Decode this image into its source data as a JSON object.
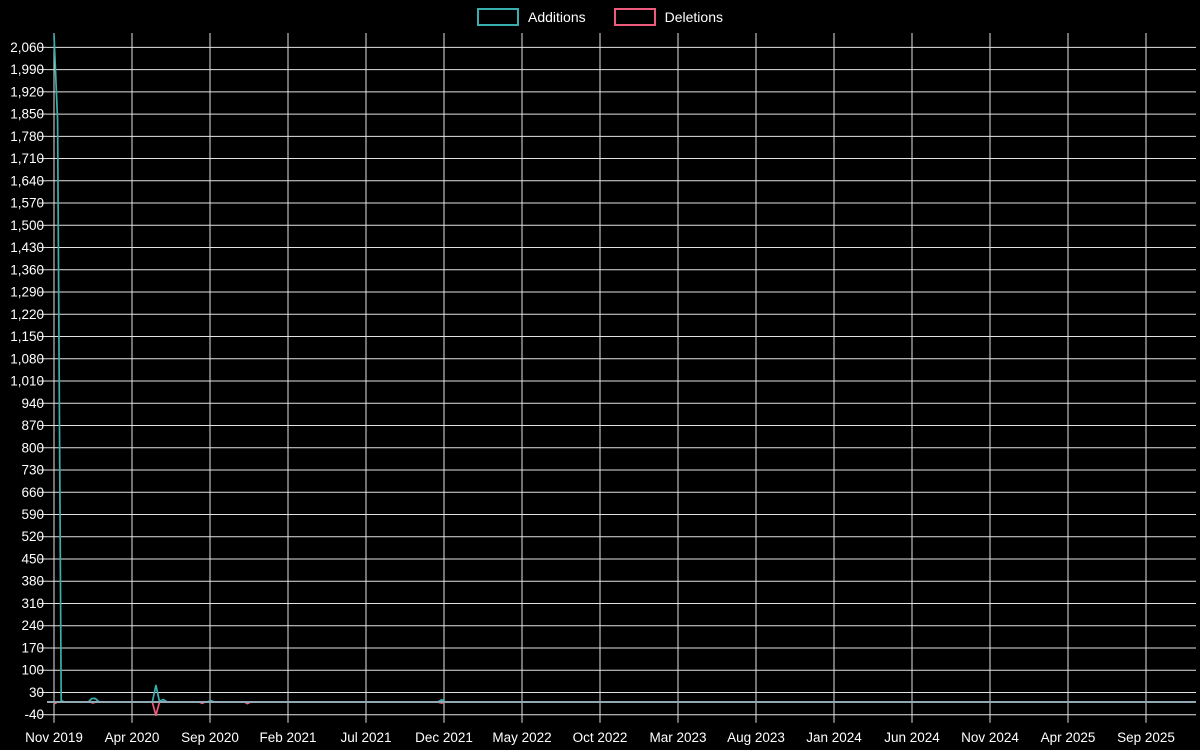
{
  "colors": {
    "background": "#000000",
    "grid": "#e2e2e2",
    "axis_text": "#ffffff",
    "additions": "#3aaeae",
    "deletions": "#ee5b7d",
    "baseline": "#92a8b4"
  },
  "legend": {
    "items": [
      {
        "label": "Additions",
        "series": "additions",
        "color": "#3aaeae"
      },
      {
        "label": "Deletions",
        "series": "deletions",
        "color": "#ee5b7d"
      }
    ]
  },
  "chart_data": {
    "type": "line",
    "title": "",
    "legend_position": "top-center",
    "grid": true,
    "x_unit": "months since Nov 2019 (weekly data)",
    "x_domain_months": [
      0,
      73.2
    ],
    "x_axis": {
      "tick_positions_months": [
        0,
        5,
        10,
        15,
        20,
        25,
        30,
        35,
        40,
        45,
        50,
        55,
        60,
        65,
        70
      ],
      "tick_labels": [
        "Nov 2019",
        "Apr 2020",
        "Sep 2020",
        "Feb 2021",
        "Jul 2021",
        "Dec 2021",
        "May 2022",
        "Oct 2022",
        "Mar 2023",
        "Aug 2023",
        "Jan 2024",
        "Jun 2024",
        "Nov 2024",
        "Apr 2025",
        "Sep 2025"
      ]
    },
    "y_axis": {
      "min": -44,
      "max": 2104,
      "tick_step": 70,
      "tick_values": [
        -40,
        30,
        100,
        170,
        240,
        310,
        380,
        450,
        520,
        590,
        660,
        730,
        800,
        870,
        940,
        1010,
        1080,
        1150,
        1220,
        1290,
        1360,
        1430,
        1500,
        1570,
        1640,
        1710,
        1780,
        1850,
        1920,
        1990,
        2060
      ],
      "tick_labels": [
        "-40",
        "30",
        "100",
        "170",
        "240",
        "310",
        "380",
        "450",
        "520",
        "590",
        "660",
        "730",
        "800",
        "870",
        "940",
        "1,010",
        "1,080",
        "1,150",
        "1,220",
        "1,290",
        "1,360",
        "1,430",
        "1,500",
        "1,570",
        "1,640",
        "1,710",
        "1,780",
        "1,850",
        "1,920",
        "1,990",
        "2,060"
      ]
    },
    "series": [
      {
        "name": "Additions",
        "color": "#3aaeae",
        "points": [
          [
            0,
            2100
          ],
          [
            0.23,
            1830
          ],
          [
            0.46,
            4
          ],
          [
            0.7,
            0
          ],
          [
            2.2,
            0
          ],
          [
            2.42,
            11
          ],
          [
            2.65,
            11
          ],
          [
            2.9,
            0
          ],
          [
            6.3,
            0
          ],
          [
            6.53,
            52
          ],
          [
            6.76,
            2
          ],
          [
            7.0,
            8
          ],
          [
            7.25,
            0
          ],
          [
            9.8,
            0
          ],
          [
            10.05,
            4
          ],
          [
            10.3,
            0
          ],
          [
            24.6,
            0
          ],
          [
            24.85,
            7
          ],
          [
            25.1,
            0
          ],
          [
            73.2,
            0
          ]
        ]
      },
      {
        "name": "Deletions",
        "color": "#ee5b7d",
        "points": [
          [
            0,
            -6
          ],
          [
            0.23,
            0
          ],
          [
            2.3,
            0
          ],
          [
            2.5,
            -3
          ],
          [
            2.7,
            0
          ],
          [
            6.3,
            0
          ],
          [
            6.53,
            -42
          ],
          [
            6.76,
            0
          ],
          [
            9.3,
            0
          ],
          [
            9.5,
            -4
          ],
          [
            9.7,
            0
          ],
          [
            12.2,
            0
          ],
          [
            12.4,
            -5
          ],
          [
            12.6,
            0
          ],
          [
            24.6,
            0
          ],
          [
            24.85,
            -3
          ],
          [
            25.1,
            0
          ],
          [
            73.2,
            0
          ]
        ]
      }
    ],
    "notable_events": [
      {
        "date": "Nov 2019",
        "additions": 2100,
        "deletions": -6
      },
      {
        "date": "Nov 2019 (week 2)",
        "additions": 1830,
        "deletions": 0
      },
      {
        "date": "Jan 2020",
        "additions": 11,
        "deletions": -3
      },
      {
        "date": "Jun 2020",
        "additions": 52,
        "deletions": -42
      },
      {
        "date": "Sep 2020",
        "additions": 4,
        "deletions": -4
      },
      {
        "date": "Dec 2020",
        "additions": 0,
        "deletions": -5
      },
      {
        "date": "Dec 2021",
        "additions": 7,
        "deletions": -3
      }
    ]
  }
}
